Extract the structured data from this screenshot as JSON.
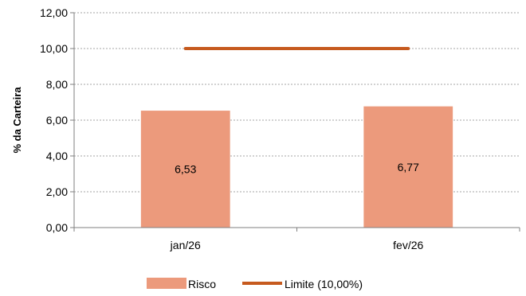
{
  "chart_data": {
    "type": "bar",
    "title": "",
    "xlabel": "",
    "ylabel": "% da Carteira",
    "categories": [
      "jan/26",
      "fev/26"
    ],
    "series": [
      {
        "name": "Risco",
        "kind": "bar",
        "values": [
          6.53,
          6.77
        ],
        "value_labels": [
          "6,53",
          "6,77"
        ],
        "color": "#EC9A7C"
      },
      {
        "name": "Limite (10,00%)",
        "kind": "line",
        "values": [
          10.0,
          10.0
        ],
        "color": "#C65A1E"
      }
    ],
    "ylim": [
      0,
      12
    ],
    "yticks": [
      0,
      2,
      4,
      6,
      8,
      10,
      12
    ],
    "ytick_labels": [
      "0,00",
      "2,00",
      "4,00",
      "6,00",
      "8,00",
      "10,00",
      "12,00"
    ],
    "grid": true,
    "legend_position": "bottom"
  }
}
